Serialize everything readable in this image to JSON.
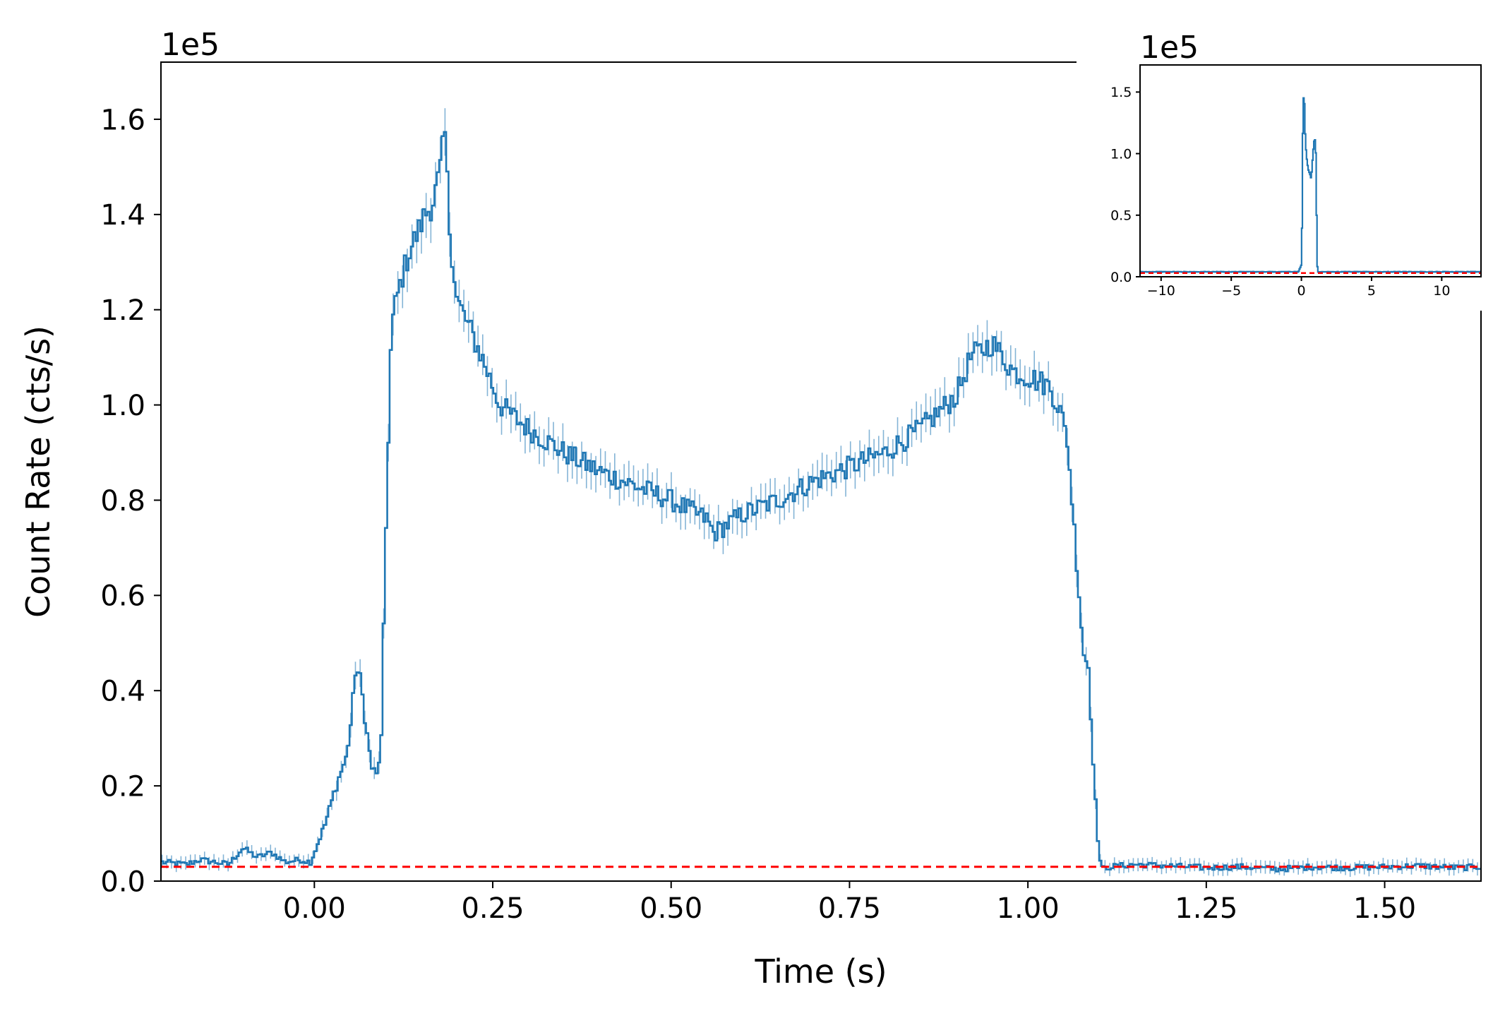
{
  "chart_data": [
    {
      "type": "line",
      "title": "",
      "xlabel": "Time (s)",
      "ylabel": "Count Rate (cts/s)",
      "y_offset_label": "1e5",
      "xlim": [
        -0.215,
        1.635
      ],
      "ylim": [
        0,
        1.72
      ],
      "xticks": [
        0.0,
        0.25,
        0.5,
        0.75,
        1.0,
        1.25,
        1.5
      ],
      "xtick_labels": [
        "0.00",
        "0.25",
        "0.50",
        "0.75",
        "1.00",
        "1.25",
        "1.50"
      ],
      "yticks": [
        0.0,
        0.2,
        0.4,
        0.6,
        0.8,
        1.0,
        1.2,
        1.4,
        1.6
      ],
      "ytick_labels": [
        "0.0",
        "0.2",
        "0.4",
        "0.6",
        "0.8",
        "1.0",
        "1.2",
        "1.4",
        "1.6"
      ],
      "grid": false,
      "series": [
        {
          "style": "step-with-errorbars",
          "color": "#1f77b4",
          "x": [
            -0.215,
            -0.18,
            -0.16,
            -0.14,
            -0.12,
            -0.1,
            -0.08,
            -0.06,
            -0.04,
            -0.02,
            -0.005,
            0.005,
            0.015,
            0.025,
            0.035,
            0.045,
            0.052,
            0.058,
            0.065,
            0.072,
            0.08,
            0.088,
            0.094,
            0.098,
            0.102,
            0.108,
            0.115,
            0.125,
            0.135,
            0.145,
            0.155,
            0.165,
            0.175,
            0.183,
            0.19,
            0.2,
            0.215,
            0.235,
            0.26,
            0.3,
            0.35,
            0.4,
            0.45,
            0.5,
            0.55,
            0.56,
            0.6,
            0.65,
            0.7,
            0.75,
            0.8,
            0.85,
            0.9,
            0.92,
            0.95,
            0.98,
            1.0,
            1.03,
            1.045,
            1.055,
            1.062,
            1.07,
            1.078,
            1.085,
            1.09,
            1.095,
            1.1,
            1.105,
            1.115,
            1.15,
            1.2,
            1.25,
            1.3,
            1.35,
            1.4,
            1.45,
            1.5,
            1.55,
            1.6,
            1.635
          ],
          "values": [
            0.04,
            0.035,
            0.045,
            0.04,
            0.035,
            0.07,
            0.05,
            0.06,
            0.04,
            0.045,
            0.04,
            0.08,
            0.12,
            0.17,
            0.22,
            0.26,
            0.34,
            0.45,
            0.42,
            0.33,
            0.24,
            0.22,
            0.3,
            0.58,
            0.84,
            1.16,
            1.22,
            1.28,
            1.33,
            1.36,
            1.4,
            1.42,
            1.48,
            1.57,
            1.36,
            1.22,
            1.17,
            1.1,
            1.0,
            0.95,
            0.9,
            0.86,
            0.83,
            0.8,
            0.76,
            0.73,
            0.77,
            0.8,
            0.84,
            0.87,
            0.9,
            0.95,
            1.02,
            1.1,
            1.13,
            1.07,
            1.06,
            1.04,
            0.99,
            0.93,
            0.8,
            0.64,
            0.48,
            0.45,
            0.3,
            0.16,
            0.05,
            0.025,
            0.03,
            0.035,
            0.032,
            0.028,
            0.03,
            0.025,
            0.03,
            0.028,
            0.03,
            0.032,
            0.028,
            0.03
          ]
        },
        {
          "style": "dashed-horizontal",
          "color": "#ff0000",
          "y": 0.03
        }
      ]
    },
    {
      "type": "line",
      "title": "",
      "xlabel": "",
      "ylabel": "",
      "y_offset_label": "1e5",
      "xlim": [
        -11.5,
        12.8
      ],
      "ylim": [
        0,
        1.72
      ],
      "xticks": [
        -10,
        -5,
        0,
        5,
        10
      ],
      "xtick_labels": [
        "−10",
        "−5",
        "0",
        "5",
        "10"
      ],
      "yticks": [
        0.0,
        0.5,
        1.0,
        1.5
      ],
      "ytick_labels": [
        "0.0",
        "0.5",
        "1.0",
        "1.5"
      ],
      "grid": false,
      "series": [
        {
          "style": "step",
          "color": "#1f77b4",
          "x": [
            -11.5,
            -8,
            -4,
            -1,
            -0.2,
            0,
            0.05,
            0.1,
            0.12,
            0.19,
            0.25,
            0.35,
            0.5,
            0.7,
            0.9,
            1.0,
            1.05,
            1.1,
            1.15,
            4,
            8,
            12.8
          ],
          "values": [
            0.04,
            0.04,
            0.04,
            0.04,
            0.04,
            0.1,
            0.45,
            1.16,
            1.3,
            1.57,
            1.2,
            1.0,
            0.86,
            0.8,
            1.1,
            1.13,
            0.9,
            0.3,
            0.04,
            0.04,
            0.04,
            0.04
          ]
        },
        {
          "style": "dashed-horizontal",
          "color": "#ff0000",
          "y": 0.03
        }
      ]
    }
  ]
}
